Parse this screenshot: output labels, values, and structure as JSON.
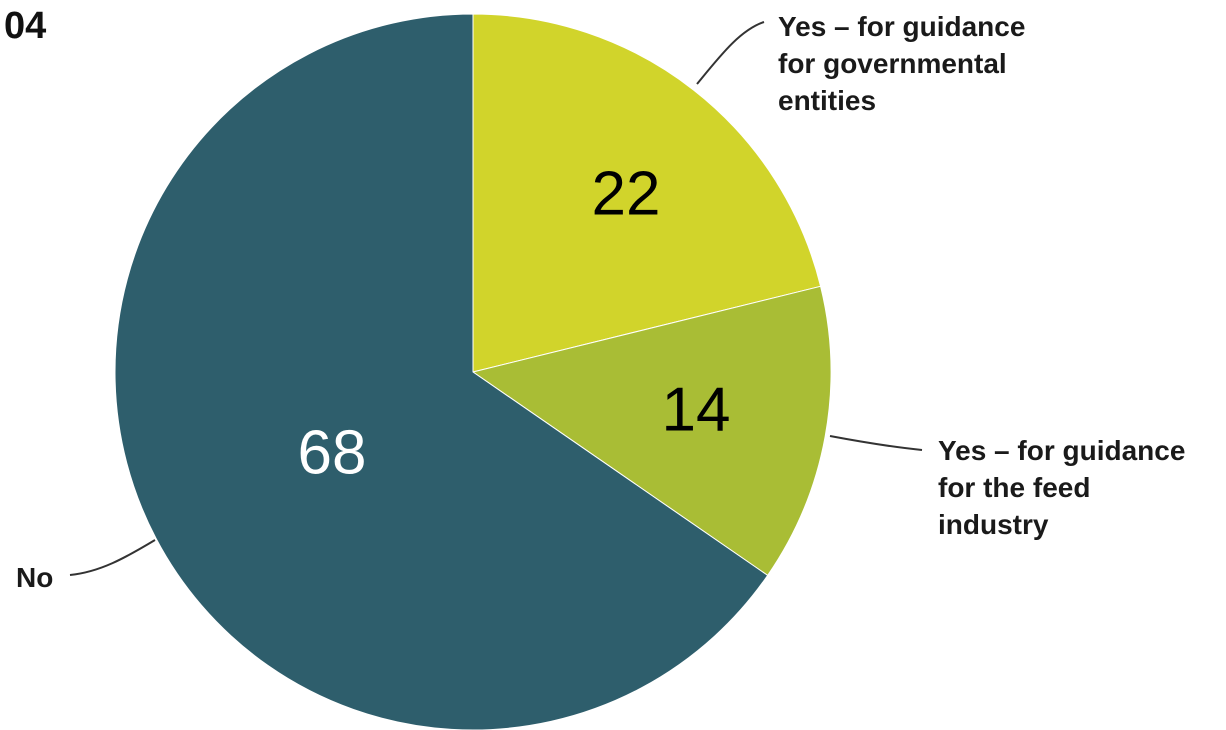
{
  "figure_id": "04",
  "chart_data": {
    "type": "pie",
    "slices": [
      {
        "label": "Yes – for guidance for governmental entities",
        "label_lines": [
          "Yes – for guidance",
          "for governmental",
          "entities"
        ],
        "value": 22,
        "value_text": "22",
        "color": "#d1d42b",
        "value_color": "#000000"
      },
      {
        "label": "Yes – for guidance for the feed industry",
        "label_lines": [
          "Yes – for guidance",
          "for the feed",
          "industry"
        ],
        "value": 14,
        "value_text": "14",
        "color": "#a9bd35",
        "value_color": "#000000"
      },
      {
        "label": "No",
        "label_lines": [
          "No"
        ],
        "value": 68,
        "value_text": "68",
        "color": "#2e5e6c",
        "value_color": "#ffffff"
      }
    ],
    "start": "12 o'clock",
    "direction": "clockwise",
    "legend": "none"
  }
}
